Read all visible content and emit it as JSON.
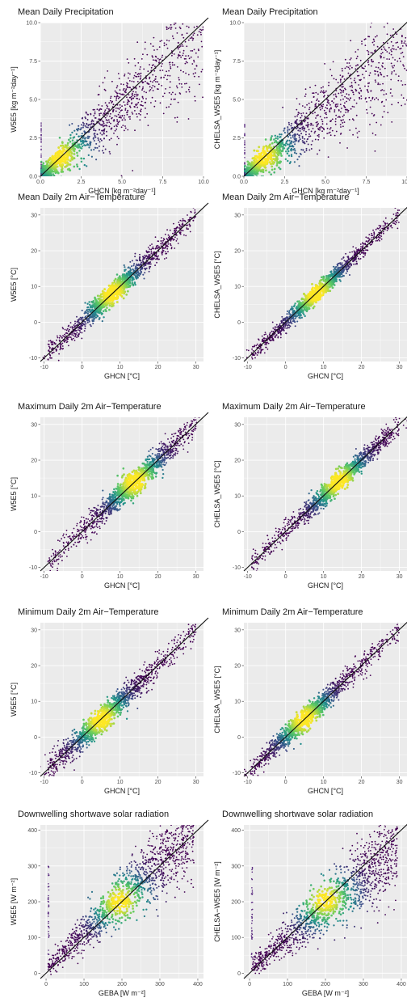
{
  "chart_data": [
    {
      "type": "scatter",
      "title": "Mean Daily Precipitation",
      "xlabel": "GHCN [kg m⁻²day⁻¹]",
      "ylabel": "W5E5 [kg m⁻²day⁻¹]",
      "xlim": [
        0,
        10
      ],
      "ylim": [
        0,
        10
      ],
      "xticks": [
        "0.0",
        "2.5",
        "5.0",
        "7.5",
        "10.0"
      ],
      "yticks": [
        "0.0",
        "2.5",
        "5.0",
        "7.5",
        "10.0"
      ],
      "peak": [
        1.2,
        1.3
      ],
      "spread": 0.9,
      "grid": true,
      "identity_line": true
    },
    {
      "type": "scatter",
      "title": "Mean Daily Precipitation",
      "xlabel": "GHCN [kg m⁻²day⁻¹]",
      "ylabel": "CHELSA_W5E5 [kg m⁻²day⁻¹]",
      "xlim": [
        0,
        10
      ],
      "ylim": [
        0,
        10
      ],
      "xticks": [
        "0.0",
        "2.5",
        "5.0",
        "7.5",
        "10.0"
      ],
      "yticks": [
        "0.0",
        "2.5",
        "5.0",
        "7.5",
        "10.0"
      ],
      "peak": [
        1.2,
        1.3
      ],
      "spread": 0.9,
      "grid": true,
      "identity_line": true
    },
    {
      "type": "scatter",
      "title": "Mean Daily 2m Air−Temperature",
      "xlabel": "GHCN [°C]",
      "ylabel": "W5E5 [°C]",
      "xlim": [
        -11,
        32
      ],
      "ylim": [
        -11,
        32
      ],
      "xticks": [
        "-10",
        "0",
        "10",
        "20",
        "30"
      ],
      "yticks": [
        "-10",
        "0",
        "10",
        "20",
        "30"
      ],
      "peak": [
        8,
        8
      ],
      "spread": 1.6,
      "grid": true,
      "identity_line": true
    },
    {
      "type": "scatter",
      "title": "Mean Daily 2m Air−Temperature",
      "xlabel": "GHCN [°C]",
      "ylabel": "CHELSA_W5E5 [°C]",
      "xlim": [
        -11,
        32
      ],
      "ylim": [
        -11,
        32
      ],
      "xticks": [
        "-10",
        "0",
        "10",
        "20",
        "30"
      ],
      "yticks": [
        "-10",
        "0",
        "10",
        "20",
        "30"
      ],
      "peak": [
        8,
        8
      ],
      "spread": 1.2,
      "grid": true,
      "identity_line": true
    },
    {
      "type": "scatter",
      "title": "Maximum Daily 2m Air−Temperature",
      "xlabel": "GHCN [°C]",
      "ylabel": "W5E5 [°C]",
      "xlim": [
        -11,
        32
      ],
      "ylim": [
        -11,
        32
      ],
      "xticks": [
        "-10",
        "0",
        "10",
        "20",
        "30"
      ],
      "yticks": [
        "-10",
        "0",
        "10",
        "20",
        "30"
      ],
      "peak": [
        14,
        14
      ],
      "spread": 1.8,
      "grid": true,
      "identity_line": true
    },
    {
      "type": "scatter",
      "title": "Maximum Daily 2m Air−Temperature",
      "xlabel": "GHCN [°C]",
      "ylabel": "CHELSA_W5E5 [°C]",
      "xlim": [
        -11,
        32
      ],
      "ylim": [
        -11,
        32
      ],
      "xticks": [
        "-10",
        "0",
        "10",
        "20",
        "30"
      ],
      "yticks": [
        "-10",
        "0",
        "10",
        "20",
        "30"
      ],
      "peak": [
        14,
        14
      ],
      "spread": 1.5,
      "grid": true,
      "identity_line": true
    },
    {
      "type": "scatter",
      "title": "Minimum Daily 2m Air−Temperature",
      "xlabel": "GHCN [°C]",
      "ylabel": "W5E5 [°C]",
      "xlim": [
        -11,
        32
      ],
      "ylim": [
        -11,
        32
      ],
      "xticks": [
        "-10",
        "0",
        "10",
        "20",
        "30"
      ],
      "yticks": [
        "-10",
        "0",
        "10",
        "20",
        "30"
      ],
      "peak": [
        5,
        5
      ],
      "spread": 1.8,
      "grid": true,
      "identity_line": true
    },
    {
      "type": "scatter",
      "title": "Minimum Daily 2m Air−Temperature",
      "xlabel": "GHCN [°C]",
      "ylabel": "CHELSA_W5E5 [°C]",
      "xlim": [
        -11,
        32
      ],
      "ylim": [
        -11,
        32
      ],
      "xticks": [
        "-10",
        "0",
        "10",
        "20",
        "30"
      ],
      "yticks": [
        "-10",
        "0",
        "10",
        "20",
        "30"
      ],
      "peak": [
        5,
        5
      ],
      "spread": 1.6,
      "grid": true,
      "identity_line": true
    },
    {
      "type": "scatter",
      "title": "Downwelling shortwave solar radiation",
      "xlabel": "GEBA [W m⁻²]",
      "ylabel": "W5E5 [W m⁻²]",
      "xlim": [
        -15,
        415
      ],
      "ylim": [
        -15,
        415
      ],
      "xticks": [
        "0",
        "100",
        "200",
        "300",
        "400"
      ],
      "yticks": [
        "0",
        "100",
        "200",
        "300",
        "400"
      ],
      "peak": [
        195,
        200
      ],
      "spread": 30,
      "grid": true,
      "identity_line": true
    },
    {
      "type": "scatter",
      "title": "Downwelling shortwave solar radiation",
      "xlabel": "GEBA [W m⁻²]",
      "ylabel": "CHELSA−W5E5 [W m⁻²]",
      "xlim": [
        -15,
        415
      ],
      "ylim": [
        -15,
        415
      ],
      "xticks": [
        "0",
        "100",
        "200",
        "300",
        "400"
      ],
      "yticks": [
        "0",
        "100",
        "200",
        "300",
        "400"
      ],
      "peak": [
        200,
        205
      ],
      "spread": 30,
      "grid": true,
      "identity_line": true
    }
  ],
  "colors": {
    "panel_bg": "#ebebeb",
    "grid": "#ffffff",
    "identity_line": "#111111",
    "density_low": "#440154",
    "density_mid": "#21908c",
    "density_high": "#fde725"
  }
}
